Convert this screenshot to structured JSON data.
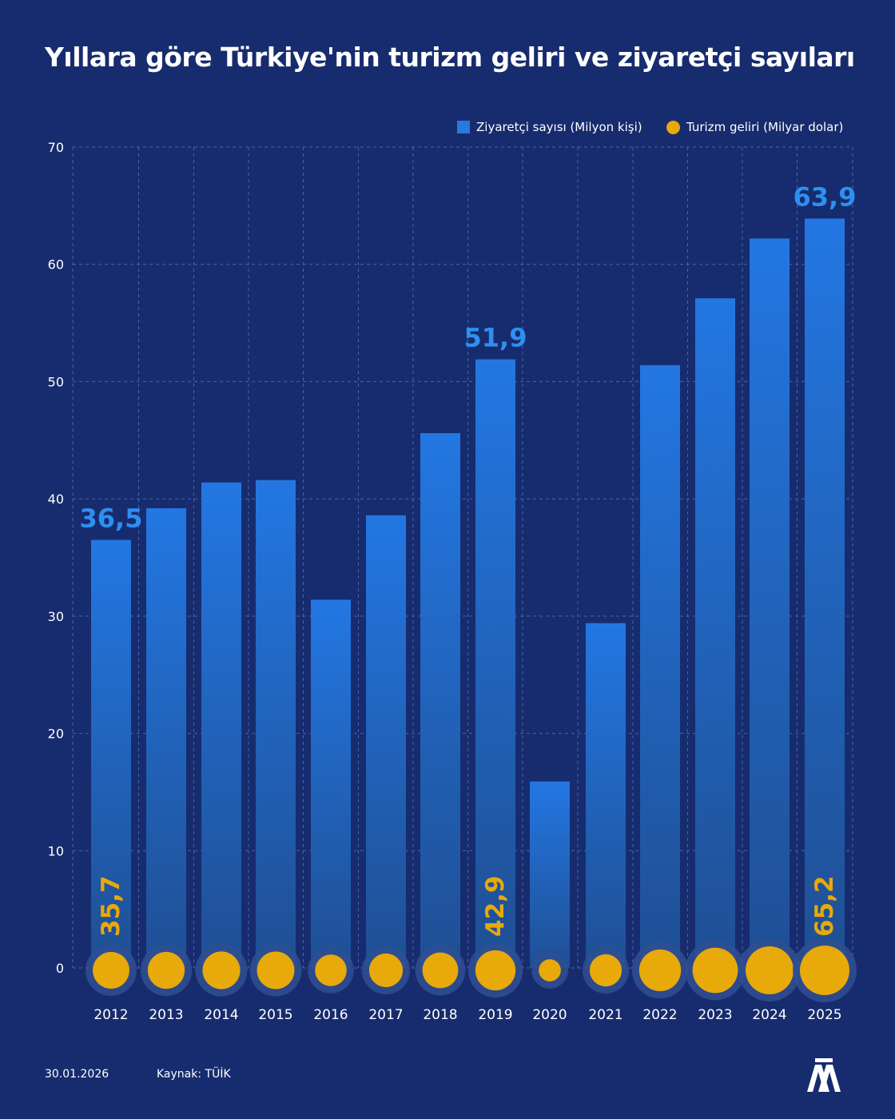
{
  "header": {
    "title": "Yıllara göre Türkiye'nin turizm geliri ve ziyaretçi sayıları"
  },
  "legend": {
    "visitors_label": "Ziyaretçi sayısı (Milyon kişi)",
    "revenue_label": "Turizm geliri (Milyar dolar)"
  },
  "colors": {
    "background": "#172c6e",
    "bar": "#2a78e0",
    "bar_label": "#2e8ff0",
    "revenue": "#e8a90a"
  },
  "chart_data": {
    "type": "bar",
    "title": "Yıllara göre Türkiye'nin turizm geliri ve ziyaretçi sayıları",
    "categories": [
      "2012",
      "2013",
      "2014",
      "2015",
      "2016",
      "2017",
      "2018",
      "2019",
      "2020",
      "2021",
      "2022",
      "2023",
      "2024",
      "2025"
    ],
    "ylim": [
      0,
      70
    ],
    "yticks": [
      0,
      10,
      20,
      30,
      40,
      50,
      60,
      70
    ],
    "grid": true,
    "legend_position": "top-right",
    "series": [
      {
        "name": "Ziyaretçi sayısı (Milyon kişi)",
        "type": "bar",
        "values": [
          36.5,
          39.2,
          41.4,
          41.6,
          31.4,
          38.6,
          45.6,
          51.9,
          15.9,
          29.4,
          51.4,
          57.1,
          62.2,
          63.9
        ]
      },
      {
        "name": "Turizm geliri (Milyar dolar)",
        "type": "bubble",
        "values": [
          35.7,
          36.3,
          37.7,
          37.4,
          26.6,
          30.2,
          34.0,
          42.9,
          13.0,
          27.4,
          46.5,
          54.7,
          61.1,
          65.2
        ]
      }
    ],
    "visitor_annotations": [
      {
        "category": "2012",
        "text": "36,5"
      },
      {
        "category": "2019",
        "text": "51,9"
      },
      {
        "category": "2025",
        "text": "63,9"
      }
    ],
    "revenue_annotations": [
      {
        "category": "2012",
        "text": "35,7"
      },
      {
        "category": "2019",
        "text": "42,9"
      },
      {
        "category": "2025",
        "text": "65,2"
      }
    ]
  },
  "footer": {
    "date": "30.01.2026",
    "source": "Kaynak: TÜİK"
  },
  "logo": {
    "text": "AA"
  }
}
